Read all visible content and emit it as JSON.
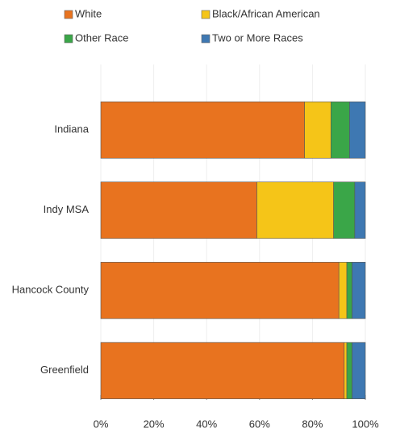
{
  "chart_data": {
    "type": "stacked_barh",
    "categories": [
      "Indiana",
      "Indy MSA",
      "Hancock County",
      "Greenfield"
    ],
    "series": [
      {
        "name": "White",
        "color": "#e8731f",
        "values": [
          77,
          59,
          90,
          92
        ]
      },
      {
        "name": "Black/African American",
        "color": "#f5c518",
        "values": [
          10,
          29,
          3,
          1
        ]
      },
      {
        "name": "Other Race",
        "color": "#3aa648",
        "values": [
          7,
          8,
          2,
          2
        ]
      },
      {
        "name": "Two or More Races",
        "color": "#3e78b2",
        "values": [
          6,
          4,
          5,
          5
        ]
      }
    ],
    "xlim": [
      0,
      100
    ],
    "xticks": [
      {
        "value": 0,
        "label": "0%"
      },
      {
        "value": 20,
        "label": "20%"
      },
      {
        "value": 40,
        "label": "40%"
      },
      {
        "value": 60,
        "label": "60%"
      },
      {
        "value": 80,
        "label": "80%"
      },
      {
        "value": 100,
        "label": "100%"
      }
    ],
    "grid": true
  }
}
